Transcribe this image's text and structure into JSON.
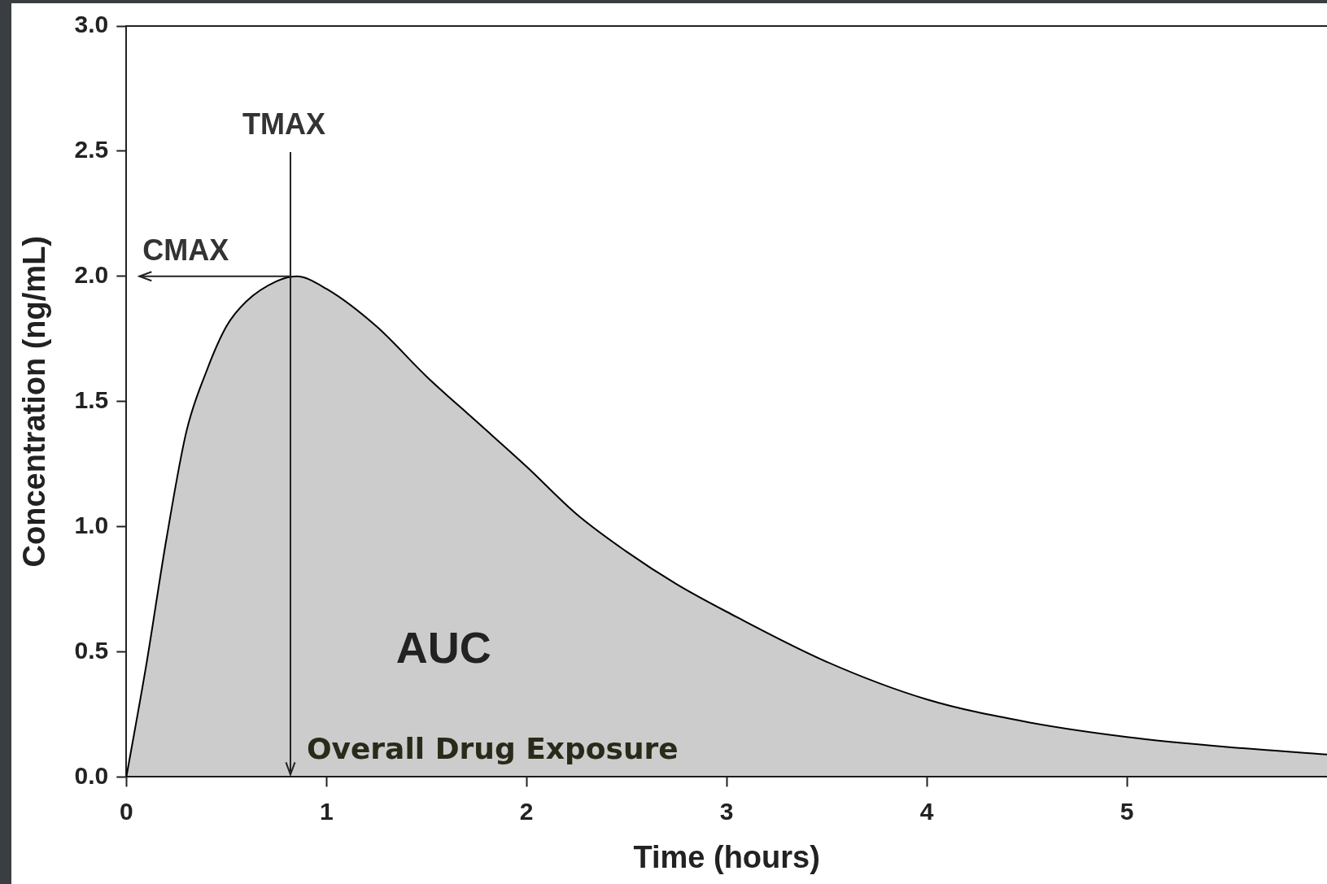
{
  "chart_data": {
    "type": "area",
    "xlabel": "Time (hours)",
    "ylabel": "Concentration (ng/mL)",
    "x": [
      0,
      0.1,
      0.2,
      0.3,
      0.4,
      0.5,
      0.6,
      0.75,
      0.85,
      1.0,
      1.25,
      1.5,
      1.75,
      2.0,
      2.25,
      2.5,
      2.75,
      3.0,
      3.5,
      4.0,
      4.5,
      5.0,
      5.5,
      6.0
    ],
    "series": [
      {
        "color": "#000000",
        "values": [
          0,
          0.45,
          0.95,
          1.38,
          1.62,
          1.8,
          1.9,
          1.98,
          2.0,
          1.95,
          1.8,
          1.6,
          1.42,
          1.24,
          1.05,
          0.9,
          0.77,
          0.66,
          0.46,
          0.31,
          0.22,
          0.16,
          0.12,
          0.09
        ]
      }
    ],
    "xlim": [
      0,
      6
    ],
    "ylim": [
      0,
      3
    ],
    "xticks": [
      0,
      1,
      2,
      3,
      4,
      5
    ],
    "yticks": [
      {
        "value": 0,
        "label": "0.0"
      },
      {
        "value": 0.5,
        "label": "0.5"
      },
      {
        "value": 1,
        "label": "1.0"
      },
      {
        "value": 1.5,
        "label": "1.5"
      },
      {
        "value": 2,
        "label": "2.0"
      },
      {
        "value": 2.5,
        "label": "2.5"
      },
      {
        "value": 3,
        "label": "3.0"
      }
    ],
    "grid": false,
    "legend": false,
    "marker": "none",
    "line_style": "solid",
    "ref_lines": [
      {
        "axis": "x",
        "value": 0.82,
        "label": "TMAX"
      },
      {
        "axis": "y",
        "value": 2.0,
        "label": "CMAX"
      }
    ],
    "annotations": [
      "AUC",
      "Overall Drug Exposure"
    ]
  }
}
